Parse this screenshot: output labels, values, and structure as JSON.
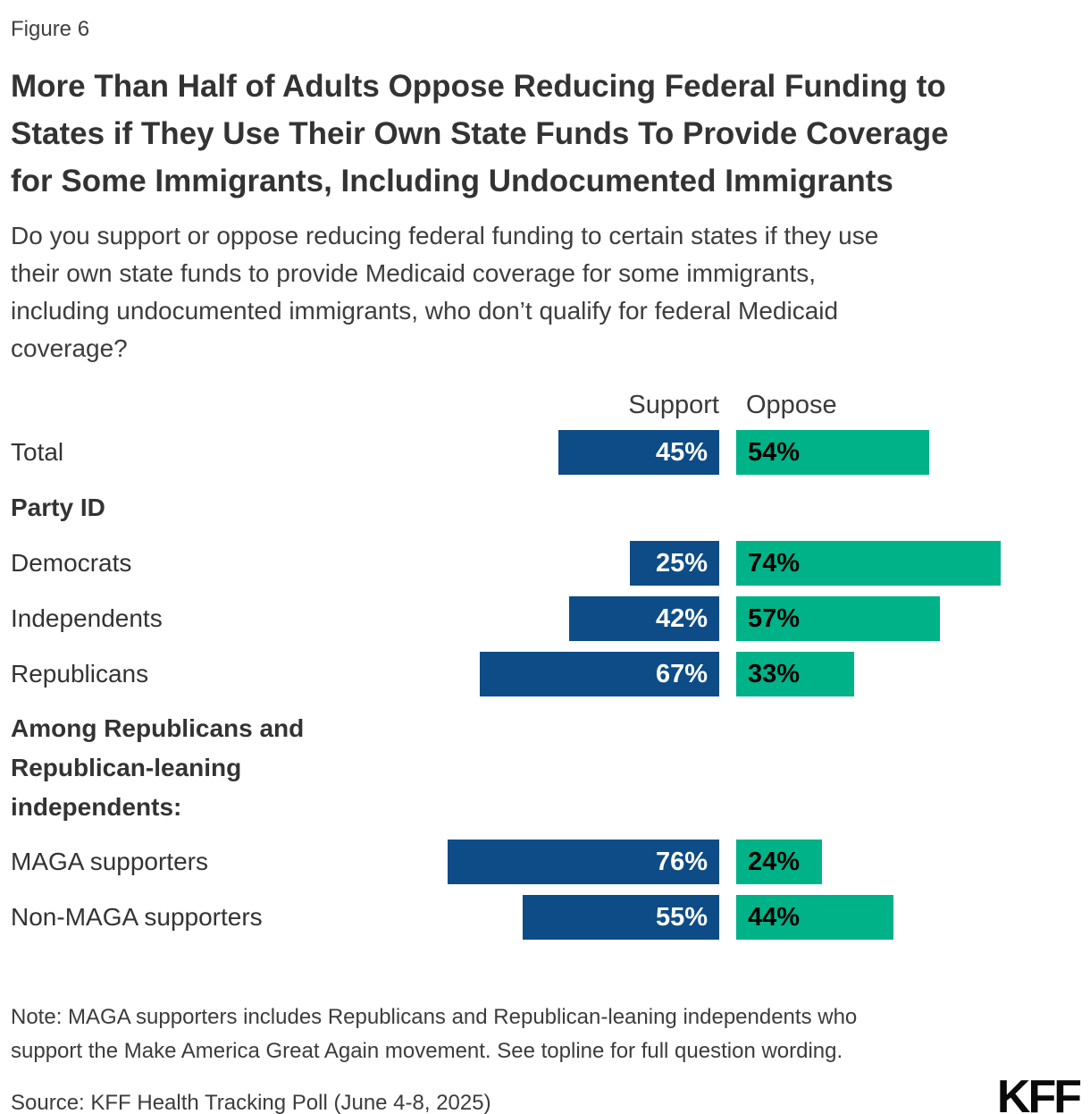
{
  "figure_label": "Figure 6",
  "title_lines": [
    "More Than Half of Adults Oppose Reducing Federal Funding to",
    "States if They Use Their Own State Funds To Provide Coverage",
    "for Some Immigrants, Including Undocumented Immigrants"
  ],
  "subtitle_lines": [
    "Do you support or oppose reducing federal funding to certain states if they use",
    "their own state funds to provide Medicaid coverage for some immigrants,",
    "including undocumented immigrants, who don’t qualify for federal Medicaid",
    "coverage?"
  ],
  "note_lines": [
    "Note: MAGA supporters includes Republicans and Republican-leaning independents who",
    "support the Make America Great Again movement. See topline for full question wording."
  ],
  "source": "Source: KFF Health Tracking Poll (June 4-8, 2025)",
  "logo": "KFF",
  "chart_data": {
    "type": "bar",
    "orientation": "horizontal-paired",
    "unit": "percent",
    "xlim": [
      0,
      100
    ],
    "series_labels": [
      "Support",
      "Oppose"
    ],
    "colors": {
      "support": "#0D4C87",
      "oppose": "#00B288"
    },
    "legend_position": "column-headers-top",
    "grid": false,
    "rows": [
      {
        "type": "data",
        "label": "Total",
        "support": 45,
        "oppose": 54,
        "support_label": "45%",
        "oppose_label": "54%"
      },
      {
        "type": "section",
        "label": "Party ID"
      },
      {
        "type": "data",
        "label": "Democrats",
        "support": 25,
        "oppose": 74,
        "support_label": "25%",
        "oppose_label": "74%"
      },
      {
        "type": "data",
        "label": "Independents",
        "support": 42,
        "oppose": 57,
        "support_label": "42%",
        "oppose_label": "57%"
      },
      {
        "type": "data",
        "label": "Republicans",
        "support": 67,
        "oppose": 33,
        "support_label": "67%",
        "oppose_label": "33%"
      },
      {
        "type": "section",
        "label": "Among Republicans and Republican-leaning independents:"
      },
      {
        "type": "data",
        "label": "MAGA supporters",
        "support": 76,
        "oppose": 24,
        "support_label": "76%",
        "oppose_label": "24%"
      },
      {
        "type": "data",
        "label": "Non-MAGA supporters",
        "support": 55,
        "oppose": 44,
        "support_label": "55%",
        "oppose_label": "44%"
      }
    ]
  }
}
